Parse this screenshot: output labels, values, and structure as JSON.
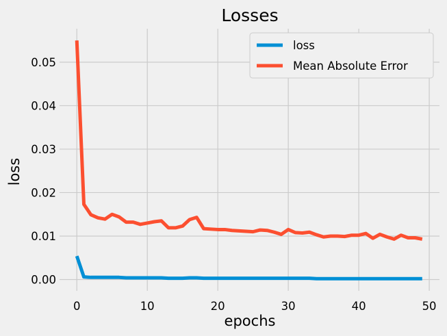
{
  "chart_data": {
    "type": "line",
    "title": "Losses",
    "xlabel": "epochs",
    "ylabel": "loss",
    "xlim": [
      -2.45,
      51.45
    ],
    "ylim": [
      -0.0026,
      0.0577
    ],
    "xticks": [
      0,
      10,
      20,
      30,
      40,
      50
    ],
    "yticks": [
      0.0,
      0.01,
      0.02,
      0.03,
      0.04,
      0.05
    ],
    "xtick_labels": [
      "0",
      "10",
      "20",
      "30",
      "40",
      "50"
    ],
    "ytick_labels": [
      "0.00",
      "0.01",
      "0.02",
      "0.03",
      "0.04",
      "0.05"
    ],
    "grid": true,
    "legend_position": "top-right",
    "x": [
      0,
      1,
      2,
      3,
      4,
      5,
      6,
      7,
      8,
      9,
      10,
      11,
      12,
      13,
      14,
      15,
      16,
      17,
      18,
      19,
      20,
      21,
      22,
      23,
      24,
      25,
      26,
      27,
      28,
      29,
      30,
      31,
      32,
      33,
      34,
      35,
      36,
      37,
      38,
      39,
      40,
      41,
      42,
      43,
      44,
      45,
      46,
      47,
      48,
      49
    ],
    "series": [
      {
        "name": "loss",
        "color": "#008fd5",
        "values": [
          0.0054,
          0.0006,
          0.0005,
          0.0005,
          0.0005,
          0.0005,
          0.0005,
          0.0004,
          0.0004,
          0.0004,
          0.0004,
          0.0004,
          0.0004,
          0.0003,
          0.0003,
          0.0003,
          0.0004,
          0.0004,
          0.0003,
          0.0003,
          0.0003,
          0.0003,
          0.0003,
          0.0003,
          0.0003,
          0.0003,
          0.0003,
          0.0003,
          0.0003,
          0.0003,
          0.0003,
          0.0003,
          0.0003,
          0.0003,
          0.0002,
          0.0002,
          0.0002,
          0.0002,
          0.0002,
          0.0002,
          0.0002,
          0.0002,
          0.0002,
          0.0002,
          0.0002,
          0.0002,
          0.0002,
          0.0002,
          0.0002,
          0.0002
        ]
      },
      {
        "name": "Mean Absolute Error",
        "color": "#fc4f30",
        "values": [
          0.055,
          0.0173,
          0.0149,
          0.0142,
          0.0139,
          0.015,
          0.0144,
          0.0132,
          0.0132,
          0.0127,
          0.013,
          0.0133,
          0.0135,
          0.0119,
          0.0119,
          0.0123,
          0.0138,
          0.0143,
          0.0117,
          0.0116,
          0.0115,
          0.0115,
          0.0113,
          0.0112,
          0.0111,
          0.011,
          0.0114,
          0.0113,
          0.0109,
          0.0104,
          0.0115,
          0.0108,
          0.0107,
          0.0109,
          0.0103,
          0.0098,
          0.01,
          0.01,
          0.0099,
          0.0102,
          0.0102,
          0.0106,
          0.0095,
          0.0104,
          0.0098,
          0.0093,
          0.0102,
          0.0096,
          0.0096,
          0.0093
        ]
      }
    ]
  }
}
